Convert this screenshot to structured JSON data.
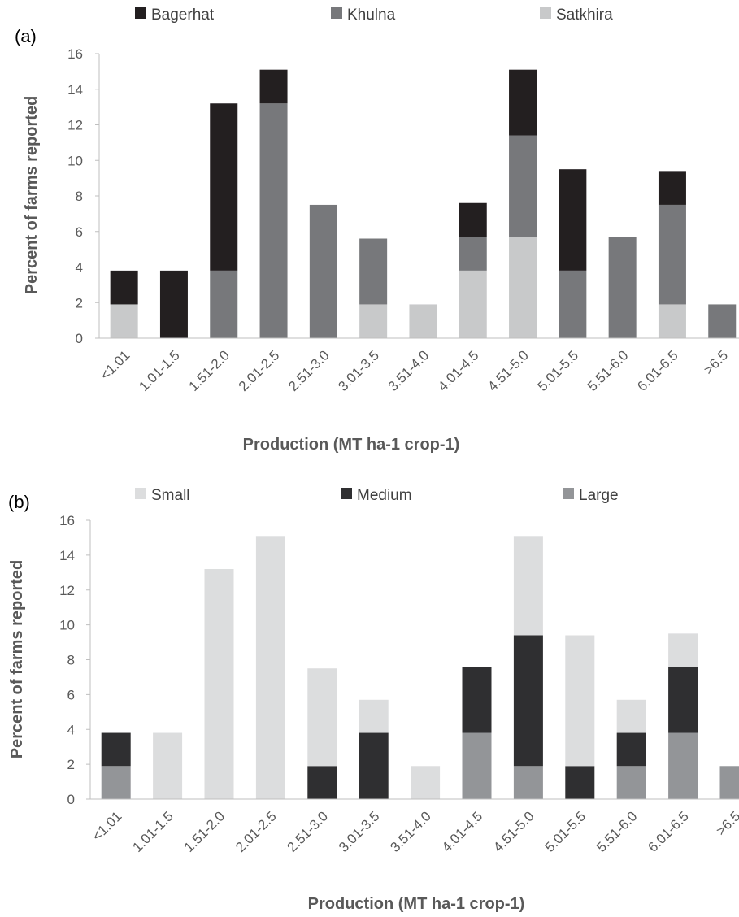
{
  "chart_data": [
    {
      "type": "bar",
      "stacked": true,
      "panel_label": "(a)",
      "categories": [
        "<1.01",
        "1.01-1.5",
        "1.51-2.0",
        "2.01-2.5",
        "2.51-3.0",
        "3.01-3.5",
        "3.51-4.0",
        "4.01-4.5",
        "4.51-5.0",
        "5.01-5.5",
        "5.51-6.0",
        "6.01-6.5",
        ">6.5"
      ],
      "series": [
        {
          "name": "Bagerhat",
          "color": "#231f20",
          "values": [
            1.9,
            3.8,
            9.4,
            1.9,
            0,
            0,
            0,
            1.9,
            3.7,
            5.7,
            0,
            1.9,
            0
          ]
        },
        {
          "name": "Khulna",
          "color": "#77787b",
          "values": [
            0,
            0,
            3.8,
            13.2,
            7.5,
            3.7,
            0,
            1.9,
            5.7,
            3.8,
            5.7,
            5.6,
            1.9
          ]
        },
        {
          "name": "Satkhira",
          "color": "#c8c9ca",
          "values": [
            1.9,
            0,
            0,
            0,
            0,
            1.9,
            1.9,
            3.8,
            5.7,
            0,
            0,
            1.9,
            0
          ]
        }
      ],
      "stack_order": [
        "Satkhira",
        "Khulna",
        "Bagerhat"
      ],
      "xlabel": "Production (MT ha-1 crop-1)",
      "ylabel": "Percent of farms reported",
      "ylim": [
        0,
        16
      ],
      "yticks": [
        0,
        2,
        4,
        6,
        8,
        10,
        12,
        14,
        16
      ],
      "grid": false,
      "legend_position": "top"
    },
    {
      "type": "bar",
      "stacked": true,
      "panel_label": "(b)",
      "categories": [
        "<1.01",
        "1.01-1.5",
        "1.51-2.0",
        "2.01-2.5",
        "2.51-3.0",
        "3.01-3.5",
        "3.51-4.0",
        "4.01-4.5",
        "4.51-5.0",
        "5.01-5.5",
        "5.51-6.0",
        "6.01-6.5",
        ">6.5"
      ],
      "series": [
        {
          "name": "Small",
          "color": "#dcddde",
          "values": [
            0,
            3.8,
            13.2,
            15.1,
            5.6,
            1.9,
            1.9,
            0,
            5.7,
            7.5,
            1.9,
            1.9,
            0
          ]
        },
        {
          "name": "Medium",
          "color": "#2f2f31",
          "values": [
            1.9,
            0,
            0,
            0,
            1.9,
            3.8,
            0,
            3.8,
            7.5,
            1.9,
            1.9,
            3.8,
            0
          ]
        },
        {
          "name": "Large",
          "color": "#939598",
          "values": [
            1.9,
            0,
            0,
            0,
            0,
            0,
            0,
            3.8,
            1.9,
            0,
            1.9,
            3.8,
            1.9
          ]
        }
      ],
      "stack_order": [
        "Large",
        "Medium",
        "Small"
      ],
      "xlabel": "Production (MT ha-1 crop-1)",
      "ylabel": "Percent of farms reported",
      "ylim": [
        0,
        16
      ],
      "yticks": [
        0,
        2,
        4,
        6,
        8,
        10,
        12,
        14,
        16
      ],
      "grid": false,
      "legend_position": "top"
    }
  ]
}
